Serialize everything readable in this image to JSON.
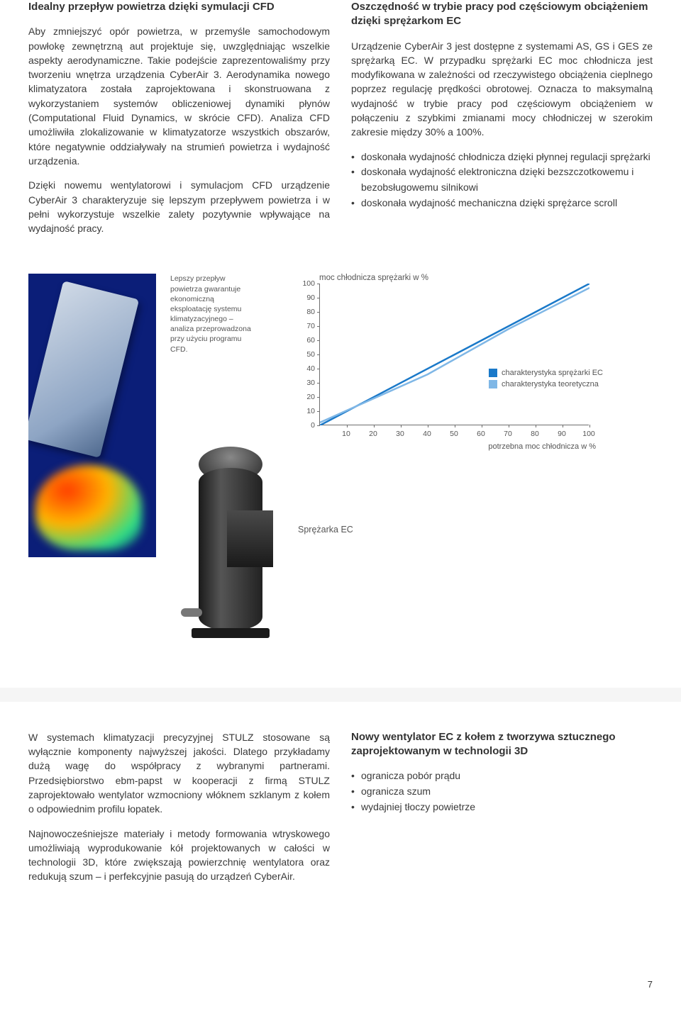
{
  "top": {
    "left": {
      "heading": "Idealny przepływ powietrza dzięki symulacji CFD",
      "p1": "Aby zmniejszyć opór powietrza, w przemyśle samochodowym powłokę zewnętrzną aut projektuje się, uwzględniając wszelkie aspekty aerodynamiczne. Takie podejście zaprezentowaliśmy przy tworzeniu wnętrza urządzenia CyberAir 3. Aerodynamika nowego klimatyzatora została zaprojektowana i skonstruowana z wykorzystaniem systemów obliczeniowej dynamiki płynów (Computational Fluid Dynamics, w skrócie CFD). Analiza CFD umożliwiła zlokalizowanie w klimatyzatorze wszystkich obszarów, które negatywnie oddziaływały na strumień powietrza i wydajność urządzenia.",
      "p2": "Dzięki nowemu wentylatorowi i symulacjom CFD urządzenie CyberAir 3 charakteryzuje się lepszym przepływem powietrza i w pełni wykorzystuje wszelkie zalety pozytywnie wpływające na wydajność pracy."
    },
    "right": {
      "heading": "Oszczędność w trybie pracy pod częściowym obciążeniem dzięki sprężarkom EC",
      "p1": "Urządzenie CyberAir 3 jest dostępne z systemami AS, GS i GES ze sprężarką EC. W przypadku sprężarki EC moc chłodnicza jest modyfikowana w zależności od rzeczywistego obciążenia cieplnego poprzez regulację prędkości obrotowej. Oznacza to maksymalną wydajność w trybie pracy pod częściowym obciążeniem w połączeniu z szybkimi zmianami mocy chłodniczej w szerokim zakresie między 30% a 100%.",
      "bullets": [
        "doskonała wydajność chłodnicza dzięki płynnej regulacji sprężarki",
        "doskonała wydajność elektroniczna dzięki bezszczotkowemu i bezobsługowemu silnikowi",
        "doskonała wydajność mechaniczna dzięki sprężarce scroll"
      ]
    }
  },
  "middle": {
    "caption": "Lepszy przepływ powietrza gwarantuje ekonomiczną eksploatację systemu klimatyzacyjnego – analiza przeprowadzona przy użyciu programu CFD.",
    "compressor_label": "Sprężarka EC",
    "chart": {
      "type": "line",
      "title_top": "moc chłodnicza sprężarki w %",
      "xlabel": "potrzebna moc chłodnicza w %",
      "xlim": [
        0,
        100
      ],
      "ylim": [
        0,
        100
      ],
      "xticks": [
        10,
        20,
        30,
        40,
        50,
        60,
        70,
        80,
        90,
        100
      ],
      "yticks": [
        0,
        10,
        20,
        30,
        40,
        50,
        60,
        70,
        80,
        90,
        100
      ],
      "background_color": "#ffffff",
      "axis_color": "#6e6e6e",
      "tick_fontsize": 10.5,
      "series": [
        {
          "name": "charakterystyka sprężarki EC",
          "color": "#1a79c9",
          "line_width": 2.5,
          "points": [
            [
              0,
              0
            ],
            [
              100,
              100
            ]
          ]
        },
        {
          "name": "charakterystyka teoretyczna",
          "color": "#7fb7e6",
          "line_width": 2.5,
          "points": [
            [
              0,
              2
            ],
            [
              40,
              36
            ],
            [
              70,
              68
            ],
            [
              100,
              97
            ]
          ]
        }
      ],
      "legend_pos": "right-middle"
    }
  },
  "bottom": {
    "left": {
      "p1": "W systemach klimatyzacji precyzyjnej STULZ stosowane są wyłącznie komponenty najwyższej jakości. Dlatego przykładamy dużą wagę do współpracy z wybranymi partnerami. Przedsiębiorstwo ebm-papst w kooperacji z firmą STULZ zaprojektowało wentylator wzmocniony włóknem szklanym z kołem o odpowiednim profilu łopatek.",
      "p2": "Najnowocześniejsze materiały i metody formowania wtryskowego umożliwiają wyprodukowanie kół projektowanych w całości w technologii 3D, które zwiększają powierzchnię wentylatora oraz redukują szum – i perfekcyjnie pasują do urządzeń CyberAir."
    },
    "right": {
      "heading": "Nowy wentylator EC z kołem z tworzywa sztucznego zaprojektowanym w technologii 3D",
      "bullets": [
        "ogranicza pobór prądu",
        "ogranicza szum",
        "wydajniej tłoczy powietrze"
      ]
    }
  },
  "page_number": "7"
}
